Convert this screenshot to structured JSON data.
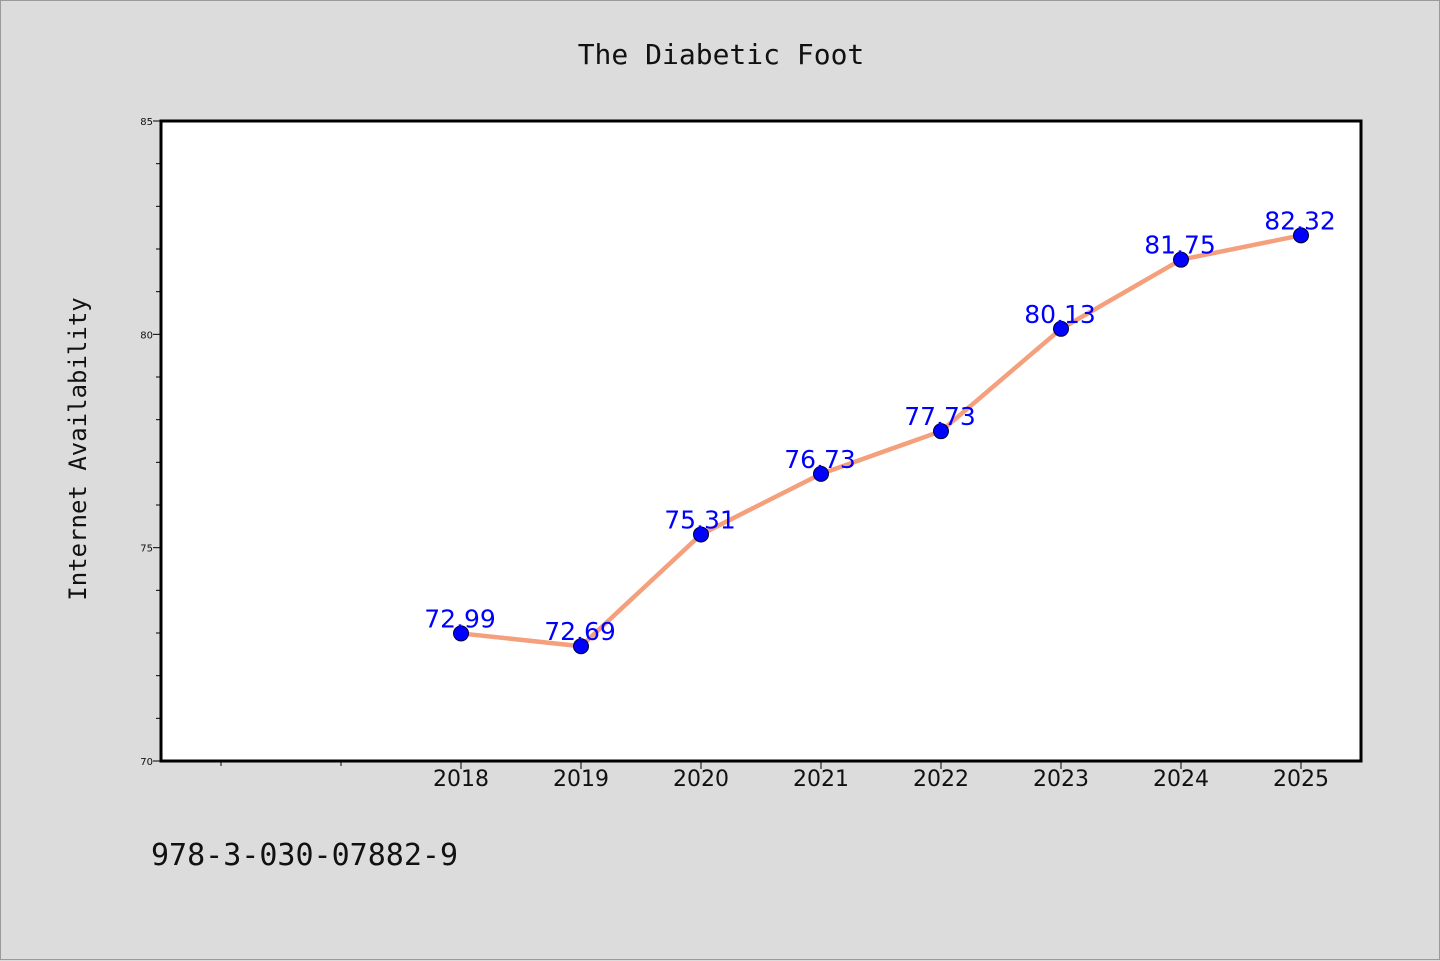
{
  "chart_data": {
    "type": "line",
    "title": "The Diabetic Foot",
    "xlabel": "",
    "ylabel": "Internet Availability",
    "categories": [
      "2018",
      "2019",
      "2020",
      "2021",
      "2022",
      "2023",
      "2024",
      "2025"
    ],
    "series": [
      {
        "values": [
          72.99,
          72.69,
          75.31,
          76.73,
          77.73,
          80.13,
          81.75,
          82.32
        ],
        "labels": [
          "72.99",
          "72.69",
          "75.31",
          "76.73",
          "77.73",
          "80.13",
          "81.75",
          "82.32"
        ],
        "line_color": "#f4a07c",
        "marker_color": "#0000ff"
      }
    ],
    "xlim": [
      2015.5,
      2025.5
    ],
    "ylim": [
      70,
      85
    ],
    "yticks": [
      "70",
      "75",
      "80",
      "85"
    ],
    "grid": false,
    "legend": "none"
  },
  "footer": {
    "isbn": "978-3-030-07882-9"
  }
}
